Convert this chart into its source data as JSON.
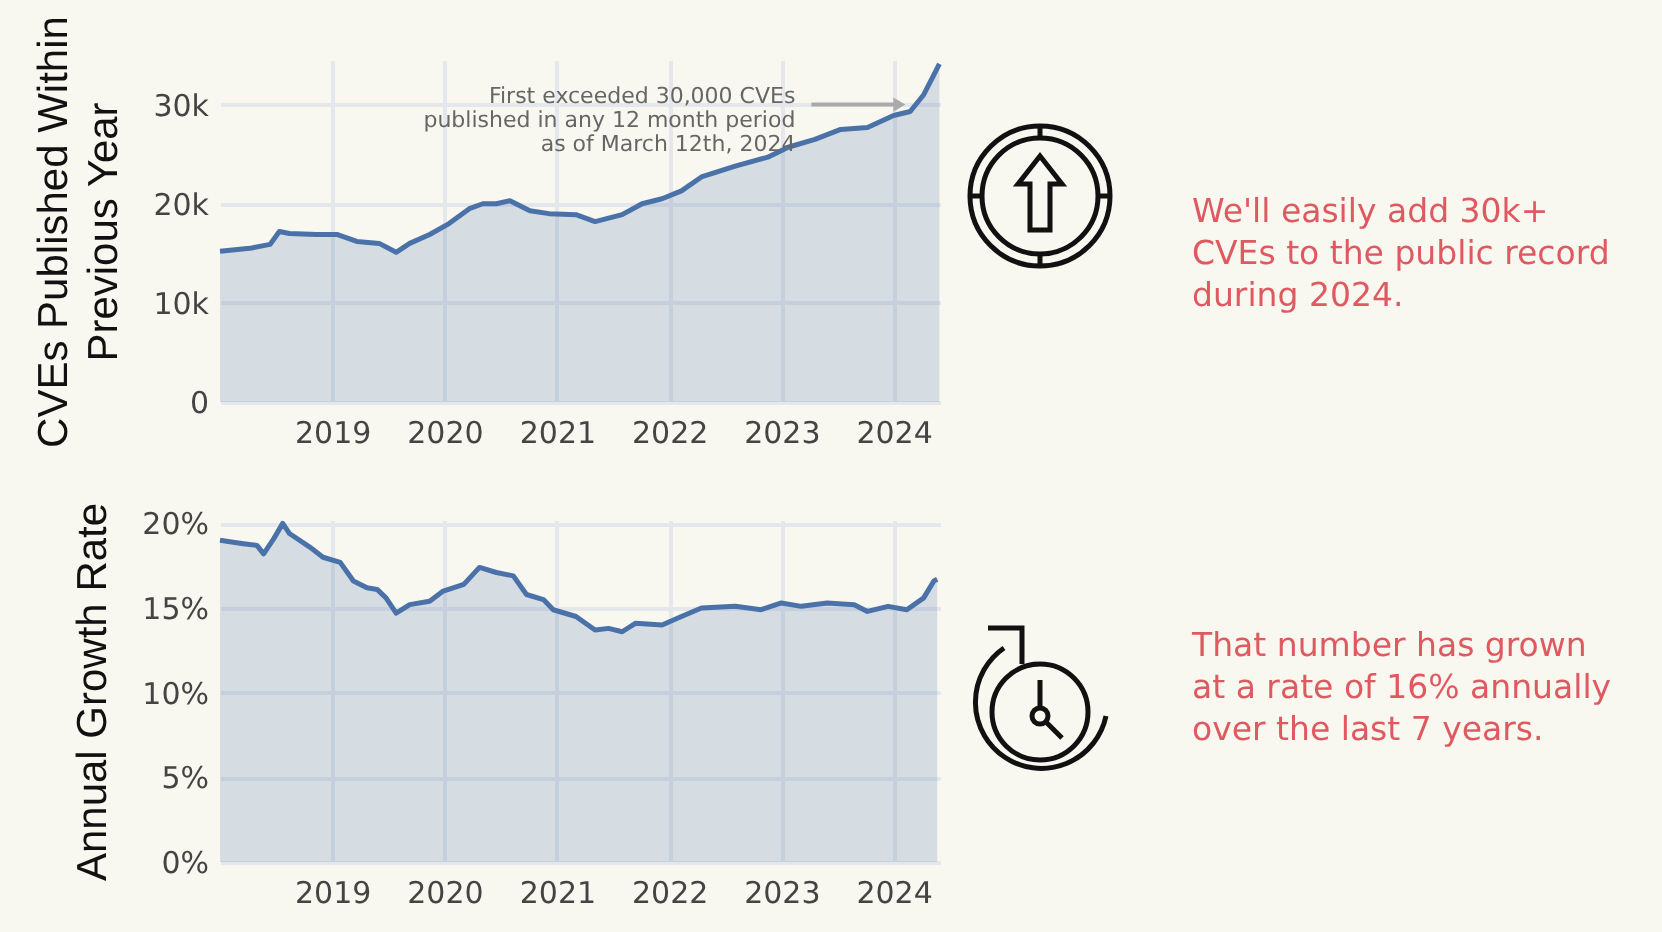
{
  "chart_data": [
    {
      "type": "area",
      "ylabel": "CVEs Published Within\nPrevious Year",
      "color": "#4a72a8",
      "grid": true,
      "x": [
        "2018-01-01",
        "2018-04-08",
        "2018-06-13",
        "2018-07-13",
        "2018-08-15",
        "2018-11-10",
        "2019-01-16",
        "2019-03-22",
        "2019-06-03",
        "2019-07-28",
        "2019-09-10",
        "2019-11-14",
        "2020-01-16",
        "2020-03-22",
        "2020-05-05",
        "2020-06-18",
        "2020-08-01",
        "2020-10-05",
        "2020-12-06",
        "2021-03-04",
        "2021-05-05",
        "2021-08-01",
        "2021-10-05",
        "2021-12-09",
        "2022-02-10",
        "2022-04-16",
        "2022-08-04",
        "2022-11-18",
        "2023-01-23",
        "2023-04-20",
        "2023-07-13",
        "2023-10-08",
        "2024-01-01",
        "2024-02-24",
        "2024-04-08",
        "2024-05-11",
        "2024-05-29"
      ],
      "values": [
        15200,
        15500,
        15900,
        17200,
        17000,
        16900,
        16900,
        16200,
        16000,
        15100,
        16000,
        16900,
        18000,
        19500,
        20000,
        20000,
        20300,
        19300,
        19000,
        18900,
        18200,
        18900,
        20000,
        20500,
        21300,
        22700,
        23800,
        24700,
        25700,
        26500,
        27500,
        27700,
        28900,
        29300,
        31000,
        33000,
        34100
      ],
      "xlim": [
        "2018-01-01",
        "2024-05-31"
      ],
      "xticks": [
        "2019",
        "2020",
        "2021",
        "2022",
        "2023",
        "2024"
      ],
      "ylim": [
        0,
        34500
      ],
      "yticks": [
        0,
        {
          "value": 10000,
          "label": "10k"
        },
        {
          "value": 20000,
          "label": "20k"
        },
        {
          "value": 30000,
          "label": "30k"
        }
      ],
      "annotations": [
        {
          "text": "First exceeded 30,000 CVEs\npublished in any 12 month period\nas of March 12th, 2024",
          "x": "2024-03-12",
          "y": 30000
        }
      ]
    },
    {
      "type": "area",
      "ylabel": "Annual Growth Rate",
      "color": "#4a72a8",
      "grid": true,
      "x": [
        "2018-01-01",
        "2018-03-18",
        "2018-05-01",
        "2018-05-23",
        "2018-06-25",
        "2018-07-24",
        "2018-08-15",
        "2018-10-20",
        "2018-12-02",
        "2019-01-27",
        "2019-03-11",
        "2019-04-24",
        "2019-05-27",
        "2019-06-25",
        "2019-07-28",
        "2019-09-10",
        "2019-11-14",
        "2019-12-28",
        "2020-03-04",
        "2020-04-24",
        "2020-06-18",
        "2020-08-12",
        "2020-09-24",
        "2020-11-18",
        "2020-12-20",
        "2021-03-04",
        "2021-05-05",
        "2021-06-18",
        "2021-08-01",
        "2021-09-13",
        "2021-12-09",
        "2022-02-10",
        "2022-04-16",
        "2022-08-04",
        "2022-10-27",
        "2023-01-01",
        "2023-03-07",
        "2023-05-30",
        "2023-08-26",
        "2023-10-08",
        "2023-12-14",
        "2024-02-13",
        "2024-04-08",
        "2024-05-11",
        "2024-05-22"
      ],
      "values": [
        19.0,
        18.8,
        18.7,
        18.2,
        19.1,
        20.0,
        19.4,
        18.6,
        18.0,
        17.7,
        16.6,
        16.2,
        16.1,
        15.6,
        14.7,
        15.2,
        15.4,
        16.0,
        16.4,
        17.4,
        17.1,
        16.9,
        15.8,
        15.5,
        14.9,
        14.5,
        13.7,
        13.8,
        13.6,
        14.1,
        14.0,
        14.5,
        15.0,
        15.1,
        14.9,
        15.3,
        15.1,
        15.3,
        15.2,
        14.8,
        15.1,
        14.9,
        15.6,
        16.6,
        16.7
      ],
      "xlim": [
        "2018-01-01",
        "2024-05-31"
      ],
      "xticks": [
        "2019",
        "2020",
        "2021",
        "2022",
        "2023",
        "2024"
      ],
      "ylim": [
        0,
        20.2
      ],
      "yticks": [
        {
          "value": 0,
          "label": "0%"
        },
        {
          "value": 5,
          "label": "5%"
        },
        {
          "value": 10,
          "label": "10%"
        },
        {
          "value": 15,
          "label": "15%"
        },
        {
          "value": 20,
          "label": "20%"
        }
      ]
    },
    {
      "type": "other",
      "annotations": [
        "We'll easily add 30k+ CVEs to the public record during 2024.",
        "That number has grown at a rate of 16% annually over the last 7 years."
      ]
    }
  ]
}
